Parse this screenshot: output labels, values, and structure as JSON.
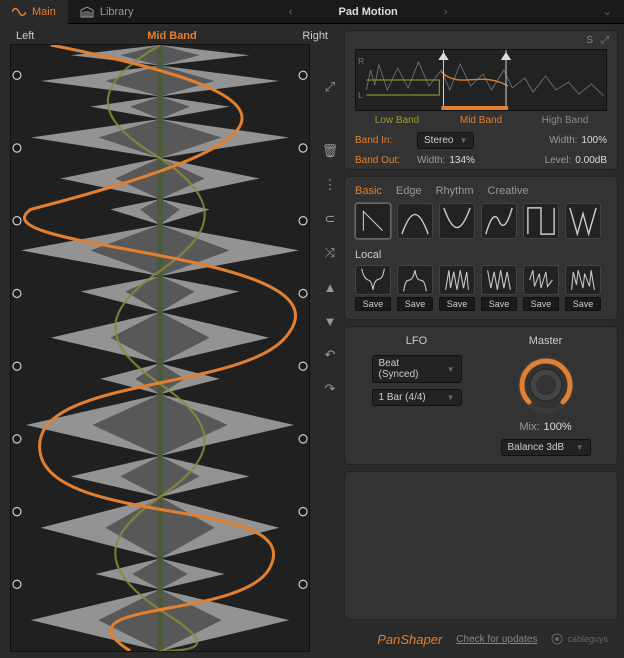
{
  "topbar": {
    "tabs": [
      {
        "label": "Main",
        "icon": "wave"
      },
      {
        "label": "Library",
        "icon": "library"
      }
    ],
    "preset_name": "Pad Motion",
    "prev": "‹",
    "next": "›"
  },
  "waveform_display": {
    "title": "Mid Band",
    "left_label": "Left",
    "right_label": "Right",
    "curve_color": "#e08030",
    "curve2_color": "#8a8a3a",
    "waveform_color": "#a8a8a8",
    "bg_color": "#202020",
    "center_line_color": "#4a5a3a",
    "node_points_y": [
      0.05,
      0.17,
      0.29,
      0.41,
      0.53,
      0.65,
      0.77,
      0.89
    ]
  },
  "tools": [
    {
      "name": "expand-icon",
      "glyph": "⤢"
    },
    {
      "name": "trash-icon",
      "glyph": "🗑"
    },
    {
      "name": "link-icon",
      "glyph": "⋮"
    },
    {
      "name": "magnet-icon",
      "glyph": "⊂"
    },
    {
      "name": "shuffle-icon",
      "glyph": "⤨"
    },
    {
      "name": "up-icon",
      "glyph": "▲"
    },
    {
      "name": "down-icon",
      "glyph": "▼"
    },
    {
      "name": "undo-icon",
      "glyph": "↶"
    },
    {
      "name": "redo-icon",
      "glyph": "↷"
    }
  ],
  "overview": {
    "hdr": {
      "s": "S",
      "expand": "⤢"
    },
    "axis": {
      "r": "R",
      "l": "L"
    },
    "bands": {
      "low": "Low Band",
      "mid": "Mid Band",
      "high": "High Band"
    },
    "band_in_label": "Band In:",
    "band_in_value": "Stereo",
    "width_label": "Width:",
    "width_value": "100%",
    "band_out_label": "Band Out:",
    "width2_label": "Width:",
    "width2_value": "134%",
    "level_label": "Level:",
    "level_value": "0.00dB",
    "marker_positions": [
      0.35,
      0.6
    ],
    "colors": {
      "low": "#9a9a3a",
      "mid": "#e08030",
      "high": "#888888",
      "line_low": "#8a8a3a",
      "line_mid": "#e08030",
      "wave": "#9a9a9a"
    }
  },
  "wave_library": {
    "tabs": [
      "Basic",
      "Edge",
      "Rhythm",
      "Creative"
    ],
    "active_tab": 0,
    "presets_svg": [
      "M2 30 L2 2 L30 30",
      "M2 30 C 12 2, 20 2, 30 30",
      "M2 2 C 12 30, 20 30, 30 2",
      "M2 30 Q 10 2 16 16 Q 22 30 30 2",
      "M2 30 L2 2 L16 2 L16 30 L30 30 L30 2",
      "M2 2 L10 30 L16 8 L22 30 L30 2"
    ],
    "local_label": "Local",
    "local_svg": [
      "M2 2 C 8 26 12 6 16 28 C 20 4 26 26 30 2",
      "M2 30 C 6 4 10 28 16 4 C 20 28 26 4 30 30",
      "M2 28 L6 4 L8 26 L12 6 L16 28 L20 4 L24 26 L28 6 L30 28",
      "M2 4 L6 26 L10 6 L14 28 L18 4 L22 26 L26 6 L30 28",
      "M2 16 L6 4 L8 24 L14 8 L16 26 L22 6 L24 24 L30 16",
      "M2 28 L4 6 L8 22 L10 4 L16 26 L18 8 L24 24 L26 4 L30 28"
    ],
    "save_label": "Save"
  },
  "lfo": {
    "title": "LFO",
    "mode": "Beat (Synced)",
    "rate": "1 Bar (4/4)"
  },
  "master": {
    "title": "Master",
    "mix_label": "Mix:",
    "mix_value": "100%",
    "mode": "Balance 3dB",
    "knob_color": "#e08030",
    "knob_bg": "#3a3a3a",
    "knob_value_angle": 300
  },
  "footer": {
    "brand": "PanShaper",
    "updates": "Check for updates",
    "company": "cableguys"
  }
}
